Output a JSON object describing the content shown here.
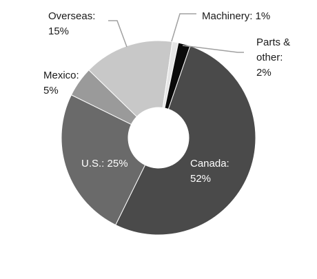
{
  "chart_data": {
    "type": "pie",
    "donut": true,
    "slices": [
      {
        "key": "canada",
        "label": "Canada:",
        "pct_label": "52%",
        "value": 52,
        "color": "#4a4a4a",
        "label_color": "#ffffff"
      },
      {
        "key": "us",
        "label": "U.S.: 25%",
        "pct_label": "",
        "value": 25,
        "color": "#6a6a6a",
        "label_color": "#ffffff"
      },
      {
        "key": "mexico",
        "label": "Mexico:",
        "pct_label": "5%",
        "value": 5,
        "color": "#9a9a9a",
        "label_color": "#1a1a1a"
      },
      {
        "key": "overseas",
        "label": "Overseas:",
        "pct_label": "15%",
        "value": 15,
        "color": "#c8c8c8",
        "label_color": "#1a1a1a"
      },
      {
        "key": "machinery",
        "label": "Machinery: 1%",
        "pct_label": "",
        "value": 1,
        "color": "#e6e6e6",
        "label_color": "#1a1a1a"
      },
      {
        "key": "parts",
        "label": "Parts &",
        "label2": "other:",
        "pct_label": "2%",
        "value": 2,
        "color": "#0a0a0a",
        "label_color": "#1a1a1a"
      }
    ],
    "leader_color": "#a0a0a0",
    "legend": "none"
  }
}
